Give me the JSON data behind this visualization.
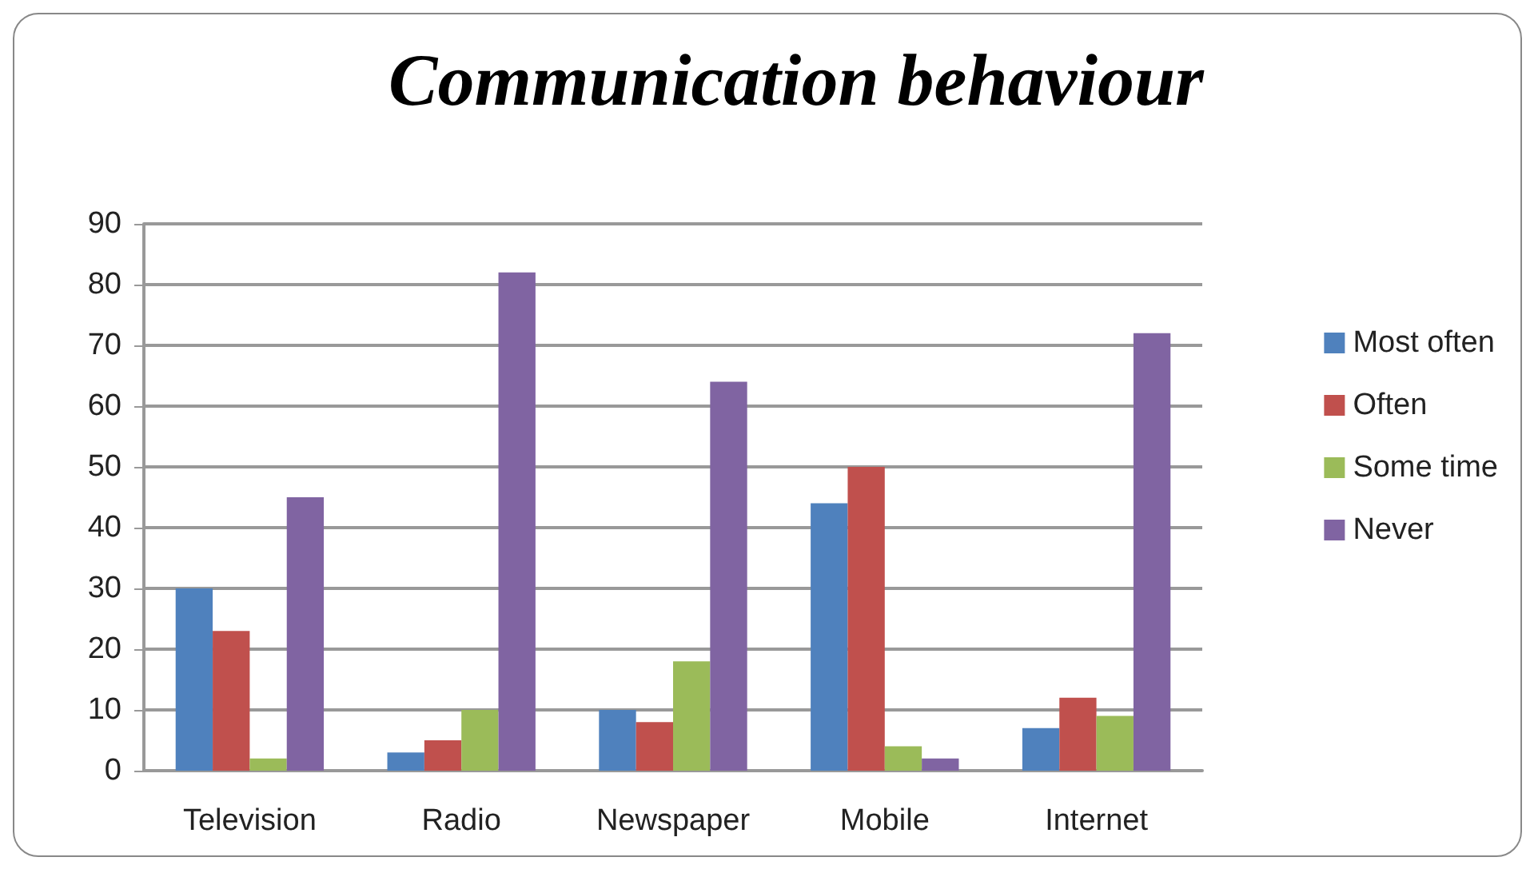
{
  "chart_data": {
    "type": "bar",
    "title": "Communication behaviour",
    "categories": [
      "Television",
      "Radio",
      "Newspaper",
      "Mobile",
      "Internet"
    ],
    "series": [
      {
        "name": "Most often",
        "color": "#4f81bd",
        "values": [
          30,
          3,
          10,
          44,
          7
        ]
      },
      {
        "name": "Often",
        "color": "#c0504d",
        "values": [
          23,
          5,
          8,
          50,
          12
        ]
      },
      {
        "name": "Some time",
        "color": "#9bbb59",
        "values": [
          2,
          10,
          18,
          4,
          9
        ]
      },
      {
        "name": "Never",
        "color": "#8064a2",
        "values": [
          45,
          82,
          64,
          2,
          72
        ]
      }
    ],
    "ylim": [
      0,
      90
    ],
    "yticks": [
      0,
      10,
      20,
      30,
      40,
      50,
      60,
      70,
      80,
      90
    ],
    "grid": "y",
    "legend": "right"
  }
}
